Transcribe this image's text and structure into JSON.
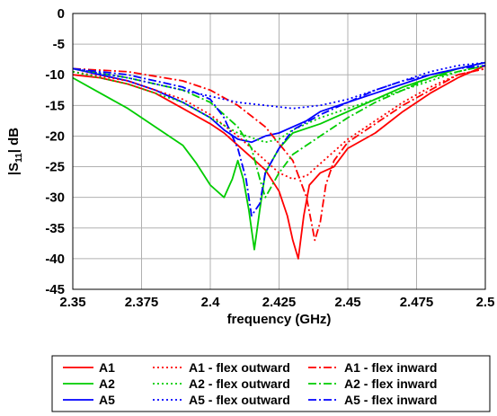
{
  "chart_data": {
    "type": "line",
    "xlabel": "frequency (GHz)",
    "ylabel_main": "|S",
    "ylabel_sub": "11",
    "ylabel_tail": "| dB",
    "xlim": [
      2.35,
      2.5
    ],
    "ylim": [
      -45,
      0
    ],
    "x_ticks": [
      2.35,
      2.375,
      2.4,
      2.425,
      2.45,
      2.475,
      2.5
    ],
    "x_tick_labels": [
      "2.35",
      "2.375",
      "2.4",
      "2.425",
      "2.45",
      "2.475",
      "2.5"
    ],
    "y_ticks": [
      0,
      -5,
      -10,
      -15,
      -20,
      -25,
      -30,
      -35,
      -40,
      -45
    ],
    "y_tick_labels": [
      "0",
      "-5",
      "-10",
      "-15",
      "-20",
      "-25",
      "-30",
      "-35",
      "-40",
      "-45"
    ],
    "grid": true,
    "legend_position": "bottom",
    "colors": {
      "A1": "#ff0000",
      "A2": "#00cc00",
      "A5": "#0000ff"
    },
    "series": [
      {
        "name": "A1",
        "color": "#ff0000",
        "style": "solid",
        "x": [
          2.35,
          2.36,
          2.37,
          2.38,
          2.39,
          2.4,
          2.405,
          2.41,
          2.415,
          2.42,
          2.425,
          2.428,
          2.43,
          2.432,
          2.434,
          2.436,
          2.44,
          2.445,
          2.45,
          2.46,
          2.47,
          2.48,
          2.49,
          2.5
        ],
        "y": [
          -10,
          -10.5,
          -11.5,
          -13,
          -15.5,
          -18,
          -19.5,
          -21.5,
          -23.5,
          -25.5,
          -29,
          -33,
          -37,
          -40,
          -33,
          -28,
          -26,
          -25,
          -22,
          -19.5,
          -16,
          -13,
          -10.5,
          -8.5
        ]
      },
      {
        "name": "A2",
        "color": "#00cc00",
        "style": "solid",
        "x": [
          2.35,
          2.36,
          2.37,
          2.38,
          2.39,
          2.395,
          2.4,
          2.405,
          2.408,
          2.41,
          2.412,
          2.414,
          2.416,
          2.418,
          2.42,
          2.425,
          2.43,
          2.44,
          2.45,
          2.46,
          2.47,
          2.48,
          2.49,
          2.5
        ],
        "y": [
          -10.5,
          -13,
          -15.5,
          -18.5,
          -21.5,
          -24.5,
          -28,
          -30,
          -27,
          -24,
          -27,
          -32,
          -38.5,
          -32,
          -26,
          -22,
          -19.5,
          -18,
          -16,
          -14,
          -12,
          -10.5,
          -9,
          -8
        ]
      },
      {
        "name": "A5",
        "color": "#0000ff",
        "style": "solid",
        "x": [
          2.35,
          2.36,
          2.37,
          2.38,
          2.39,
          2.4,
          2.405,
          2.41,
          2.415,
          2.42,
          2.425,
          2.43,
          2.435,
          2.44,
          2.45,
          2.46,
          2.47,
          2.48,
          2.49,
          2.5
        ],
        "y": [
          -9,
          -10,
          -11,
          -12.5,
          -14.5,
          -17,
          -19,
          -20.5,
          -21,
          -20,
          -19.5,
          -18.5,
          -17.5,
          -16,
          -14.5,
          -13,
          -11.5,
          -10,
          -9,
          -8
        ]
      },
      {
        "name": "A1 - flex outward",
        "color": "#ff0000",
        "style": "dotted",
        "x": [
          2.35,
          2.37,
          2.39,
          2.4,
          2.41,
          2.42,
          2.425,
          2.43,
          2.435,
          2.44,
          2.445,
          2.45,
          2.46,
          2.47,
          2.48,
          2.49,
          2.5
        ],
        "y": [
          -9.5,
          -11,
          -14,
          -16.5,
          -20,
          -24,
          -26,
          -27,
          -26.5,
          -24.5,
          -22.5,
          -20.5,
          -17.5,
          -14.5,
          -12,
          -10,
          -9
        ]
      },
      {
        "name": "A1 - flex inward",
        "color": "#ff0000",
        "style": "dashdot",
        "x": [
          2.35,
          2.37,
          2.39,
          2.4,
          2.41,
          2.42,
          2.43,
          2.435,
          2.438,
          2.44,
          2.442,
          2.445,
          2.45,
          2.46,
          2.47,
          2.48,
          2.49,
          2.5
        ],
        "y": [
          -9,
          -9.5,
          -11,
          -12.5,
          -15,
          -18.5,
          -24,
          -30,
          -37,
          -34,
          -28,
          -24,
          -21,
          -18,
          -15,
          -12.5,
          -10,
          -9
        ]
      },
      {
        "name": "A2 - flex outward",
        "color": "#00cc00",
        "style": "dotted",
        "x": [
          2.35,
          2.37,
          2.39,
          2.4,
          2.41,
          2.42,
          2.425,
          2.43,
          2.435,
          2.44,
          2.45,
          2.46,
          2.47,
          2.48,
          2.49,
          2.5
        ],
        "y": [
          -9.5,
          -11.5,
          -14.5,
          -17,
          -19.5,
          -21,
          -20.5,
          -19,
          -18,
          -17,
          -15.5,
          -14,
          -12.5,
          -11,
          -9.5,
          -8.5
        ]
      },
      {
        "name": "A2 - flex inward",
        "color": "#00cc00",
        "style": "dashdot",
        "x": [
          2.35,
          2.37,
          2.39,
          2.4,
          2.41,
          2.415,
          2.418,
          2.42,
          2.425,
          2.43,
          2.44,
          2.45,
          2.46,
          2.47,
          2.48,
          2.49,
          2.5
        ],
        "y": [
          -9,
          -10.5,
          -12.5,
          -14.5,
          -18.5,
          -22,
          -27,
          -30,
          -26,
          -23,
          -20,
          -17,
          -14.5,
          -12.5,
          -10.5,
          -9.5,
          -8.5
        ]
      },
      {
        "name": "A5 - flex outward",
        "color": "#0000ff",
        "style": "dotted",
        "x": [
          2.35,
          2.37,
          2.39,
          2.4,
          2.41,
          2.42,
          2.43,
          2.44,
          2.45,
          2.46,
          2.47,
          2.48,
          2.49,
          2.5
        ],
        "y": [
          -9,
          -10.5,
          -12.5,
          -13.5,
          -14.5,
          -15,
          -15.5,
          -15,
          -14,
          -12.5,
          -11,
          -9.5,
          -8.5,
          -8
        ]
      },
      {
        "name": "A5 - flex inward",
        "color": "#0000ff",
        "style": "dashdot",
        "x": [
          2.35,
          2.37,
          2.39,
          2.4,
          2.405,
          2.41,
          2.413,
          2.415,
          2.418,
          2.42,
          2.425,
          2.43,
          2.44,
          2.45,
          2.46,
          2.47,
          2.48,
          2.49,
          2.5
        ],
        "y": [
          -9,
          -10,
          -12,
          -14,
          -17,
          -22,
          -27,
          -33,
          -31,
          -26,
          -22,
          -19,
          -16.5,
          -14.5,
          -12.5,
          -11,
          -10,
          -9,
          -8.5
        ]
      }
    ]
  }
}
